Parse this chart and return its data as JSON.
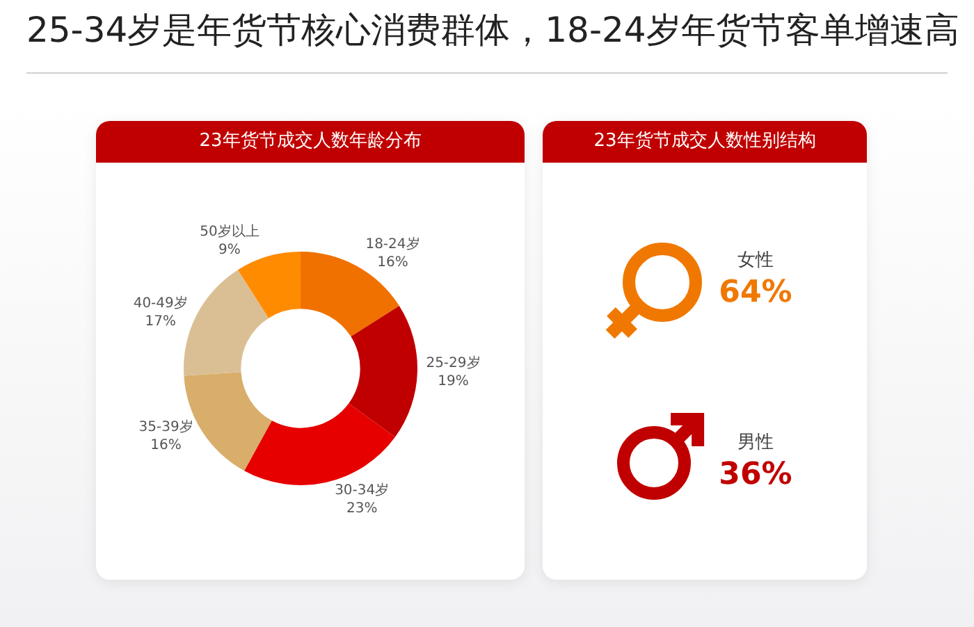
{
  "chart_data": [
    {
      "type": "other",
      "title": "25-34岁是年货节核心消费群体，18-24岁年货节客单增速高"
    },
    {
      "type": "donut",
      "title": "23年货节成交人数年龄分布",
      "categories": [
        "18-24岁",
        "25-29岁",
        "30-34岁",
        "35-39岁",
        "40-49岁",
        "50岁以上"
      ],
      "values": [
        16,
        19,
        23,
        16,
        17,
        9
      ],
      "value_labels": [
        "16%",
        "19%",
        "23%",
        "16%",
        "17%",
        "9%"
      ],
      "colors": [
        "#f07000",
        "#c00000",
        "#e60000",
        "#d8ae6a",
        "#dbbf94",
        "#ff8c00"
      ]
    },
    {
      "type": "other",
      "title": "23年货节成交人数性别结构",
      "categories": [
        "女性",
        "男性"
      ],
      "value_labels": [
        "64%",
        "36%"
      ],
      "colors": [
        "#f07800",
        "#c00000"
      ]
    }
  ]
}
